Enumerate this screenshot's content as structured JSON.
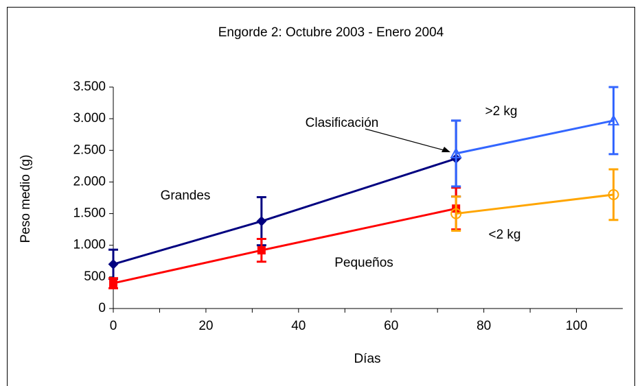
{
  "chart_data": {
    "type": "line",
    "title": "Engorde 2: Octubre 2003 - Enero 2004",
    "x_label": "Días",
    "y_label": "Peso medio (g)",
    "annotation": "Clasificación",
    "xlim": [
      0,
      110
    ],
    "xticks": [
      0,
      20,
      40,
      60,
      80,
      100
    ],
    "ylim": [
      0,
      3500
    ],
    "yticks": [
      0,
      500,
      {
        "value": 1000,
        "label": "1.000"
      },
      {
        "value": 1500,
        "label": "1.500"
      },
      {
        "value": 2000,
        "label": "2.000"
      },
      {
        "value": 2500,
        "label": "2.500"
      },
      {
        "value": 3000,
        "label": "3.000"
      },
      {
        "value": 3500,
        "label": "3.500"
      }
    ],
    "series": [
      {
        "name": "Grandes",
        "color": "#000080",
        "marker": "diamond",
        "x": [
          0,
          32,
          74
        ],
        "values": [
          700,
          1380,
          2370
        ],
        "errors": [
          230,
          380,
          600
        ]
      },
      {
        "name": "Pequeños",
        "color": "#ff0000",
        "marker": "square",
        "x": [
          0,
          32,
          74
        ],
        "values": [
          400,
          920,
          1580
        ],
        "errors": [
          80,
          180,
          330
        ]
      },
      {
        "name": ">2 kg",
        "color": "#3366ff",
        "marker": "triangle",
        "x": [
          74,
          108
        ],
        "values": [
          2450,
          2970
        ],
        "errors": [
          520,
          530
        ]
      },
      {
        "name": "<2 kg",
        "color": "#ffa500",
        "marker": "circle",
        "x": [
          74,
          108
        ],
        "values": [
          1500,
          1800
        ],
        "errors": [
          270,
          400
        ]
      }
    ]
  }
}
